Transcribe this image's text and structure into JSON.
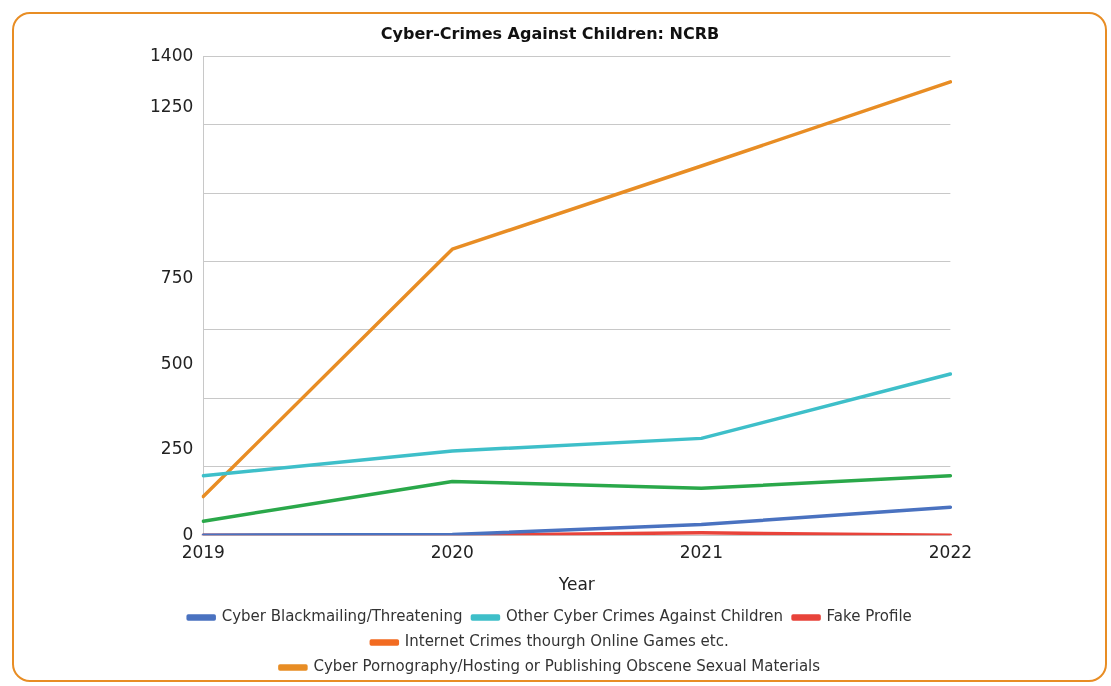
{
  "chart_data": {
    "type": "line",
    "title": "Cyber-Crimes Against Children: NCRB",
    "xlabel": "Year",
    "categories": [
      "2019",
      "2020",
      "2021",
      "2022"
    ],
    "series": [
      {
        "name": "Cyber Blackmailing/Threatening",
        "color": "#4a72c0",
        "values": [
          0,
          2,
          31,
          82
        ]
      },
      {
        "name": "Other Cyber Crimes Against Children",
        "color": "#3ebfc9",
        "values": [
          174,
          246,
          283,
          471
        ]
      },
      {
        "name": "Fake Profile",
        "color": "#e8433a",
        "values": [
          0,
          0,
          7,
          0
        ]
      },
      {
        "name": "Internet Crimes thourgh Online Games etc.",
        "color": "#f26b21",
        "values": [
          null,
          null,
          null,
          null
        ]
      },
      {
        "name": "Cyber Pornography/Hosting or Publishing Obscene Sexual Materials",
        "color": "#e88d24",
        "values": [
          113,
          836,
          1079,
          1325
        ]
      },
      {
        "color": "#2aa84a",
        "values": [
          41,
          157,
          137,
          174
        ]
      }
    ],
    "ylim": [
      0,
      1400
    ],
    "yticks": [
      0,
      {
        "value": 200,
        "label": null
      },
      250,
      {
        "value": 400,
        "label": null
      },
      500,
      {
        "value": 600,
        "label": null
      },
      750,
      {
        "value": 800,
        "label": null
      },
      {
        "value": 1000,
        "label": null
      },
      {
        "value": 1200,
        "label": null
      },
      1250,
      1400
    ],
    "grid": "y",
    "legend": "bottom",
    "marker": "none",
    "line_style": "solid"
  }
}
